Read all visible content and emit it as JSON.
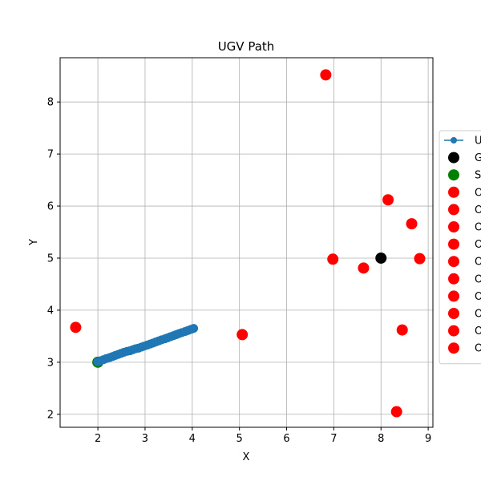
{
  "chart_data": {
    "type": "scatter",
    "title": "UGV Path",
    "xlabel": "X",
    "ylabel": "Y",
    "xlim": [
      1.2,
      9.1
    ],
    "ylim": [
      1.75,
      8.85
    ],
    "xticks": [
      2,
      3,
      4,
      5,
      6,
      7,
      8,
      9
    ],
    "yticks": [
      2,
      3,
      4,
      5,
      6,
      7,
      8
    ],
    "grid": true,
    "legend_placement": "right",
    "colors": {
      "path": "#1f77b4",
      "goal": "#000000",
      "start": "#008000",
      "obstacle": "#ff0000",
      "grid": "#b0b0b0"
    },
    "path": {
      "legend_label": "U",
      "x": [
        2.0,
        2.06,
        2.12,
        2.18,
        2.25,
        2.31,
        2.37,
        2.43,
        2.49,
        2.55,
        2.62,
        2.68,
        2.74,
        2.8,
        2.86,
        2.92,
        2.98,
        3.05,
        3.11,
        3.17,
        3.23,
        3.29,
        3.35,
        3.42,
        3.48,
        3.54,
        3.6,
        3.66,
        3.72,
        3.78,
        3.85,
        3.91,
        3.97,
        4.03
      ],
      "y": [
        3.01,
        3.03,
        3.05,
        3.07,
        3.09,
        3.11,
        3.13,
        3.15,
        3.17,
        3.19,
        3.21,
        3.22,
        3.24,
        3.26,
        3.27,
        3.29,
        3.31,
        3.33,
        3.35,
        3.37,
        3.39,
        3.41,
        3.43,
        3.45,
        3.47,
        3.49,
        3.51,
        3.53,
        3.55,
        3.57,
        3.59,
        3.61,
        3.63,
        3.65
      ]
    },
    "goal": {
      "legend_label": "G",
      "x": 8.0,
      "y": 5.0
    },
    "start": {
      "legend_label": "S",
      "x": 2.0,
      "y": 3.0
    },
    "obstacles": {
      "legend_label": "O",
      "points": [
        [
          6.83,
          8.52
        ],
        [
          8.15,
          6.12
        ],
        [
          8.65,
          5.66
        ],
        [
          6.98,
          4.98
        ],
        [
          7.63,
          4.81
        ],
        [
          8.82,
          4.99
        ],
        [
          1.53,
          3.67
        ],
        [
          5.06,
          3.53
        ],
        [
          8.45,
          3.62
        ],
        [
          8.33,
          2.05
        ]
      ]
    }
  }
}
